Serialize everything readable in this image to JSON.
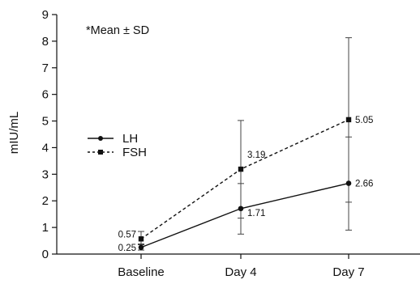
{
  "chart_data": {
    "type": "line",
    "title": "",
    "xlabel": "",
    "ylabel": "mIU/mL",
    "note": "*Mean ± SD",
    "categories": [
      "Baseline",
      "Day 4",
      "Day 7"
    ],
    "ylim": [
      0,
      9
    ],
    "yticks": [
      "0",
      "1",
      "2",
      "3",
      "4",
      "5",
      "6",
      "7",
      "8",
      "9"
    ],
    "grid": false,
    "legend_position": "left",
    "series": [
      {
        "name": "LH",
        "style": "solid",
        "marker": "circle",
        "values": [
          0.25,
          1.71,
          2.66
        ],
        "labels": [
          "0.25",
          "1.71",
          "2.66"
        ],
        "err_low": [
          0.15,
          0.75,
          0.9
        ],
        "err_high": [
          0.38,
          2.65,
          4.4
        ]
      },
      {
        "name": "FSH",
        "style": "dashed",
        "marker": "square",
        "values": [
          0.57,
          3.19,
          5.05
        ],
        "labels": [
          "0.57",
          "3.19",
          "5.05"
        ],
        "err_low": [
          0.35,
          1.35,
          1.95
        ],
        "err_high": [
          0.85,
          5.02,
          8.13
        ]
      }
    ],
    "colors": {
      "line": "#111111",
      "axis": "#111111",
      "errorbar": "#444444"
    }
  }
}
